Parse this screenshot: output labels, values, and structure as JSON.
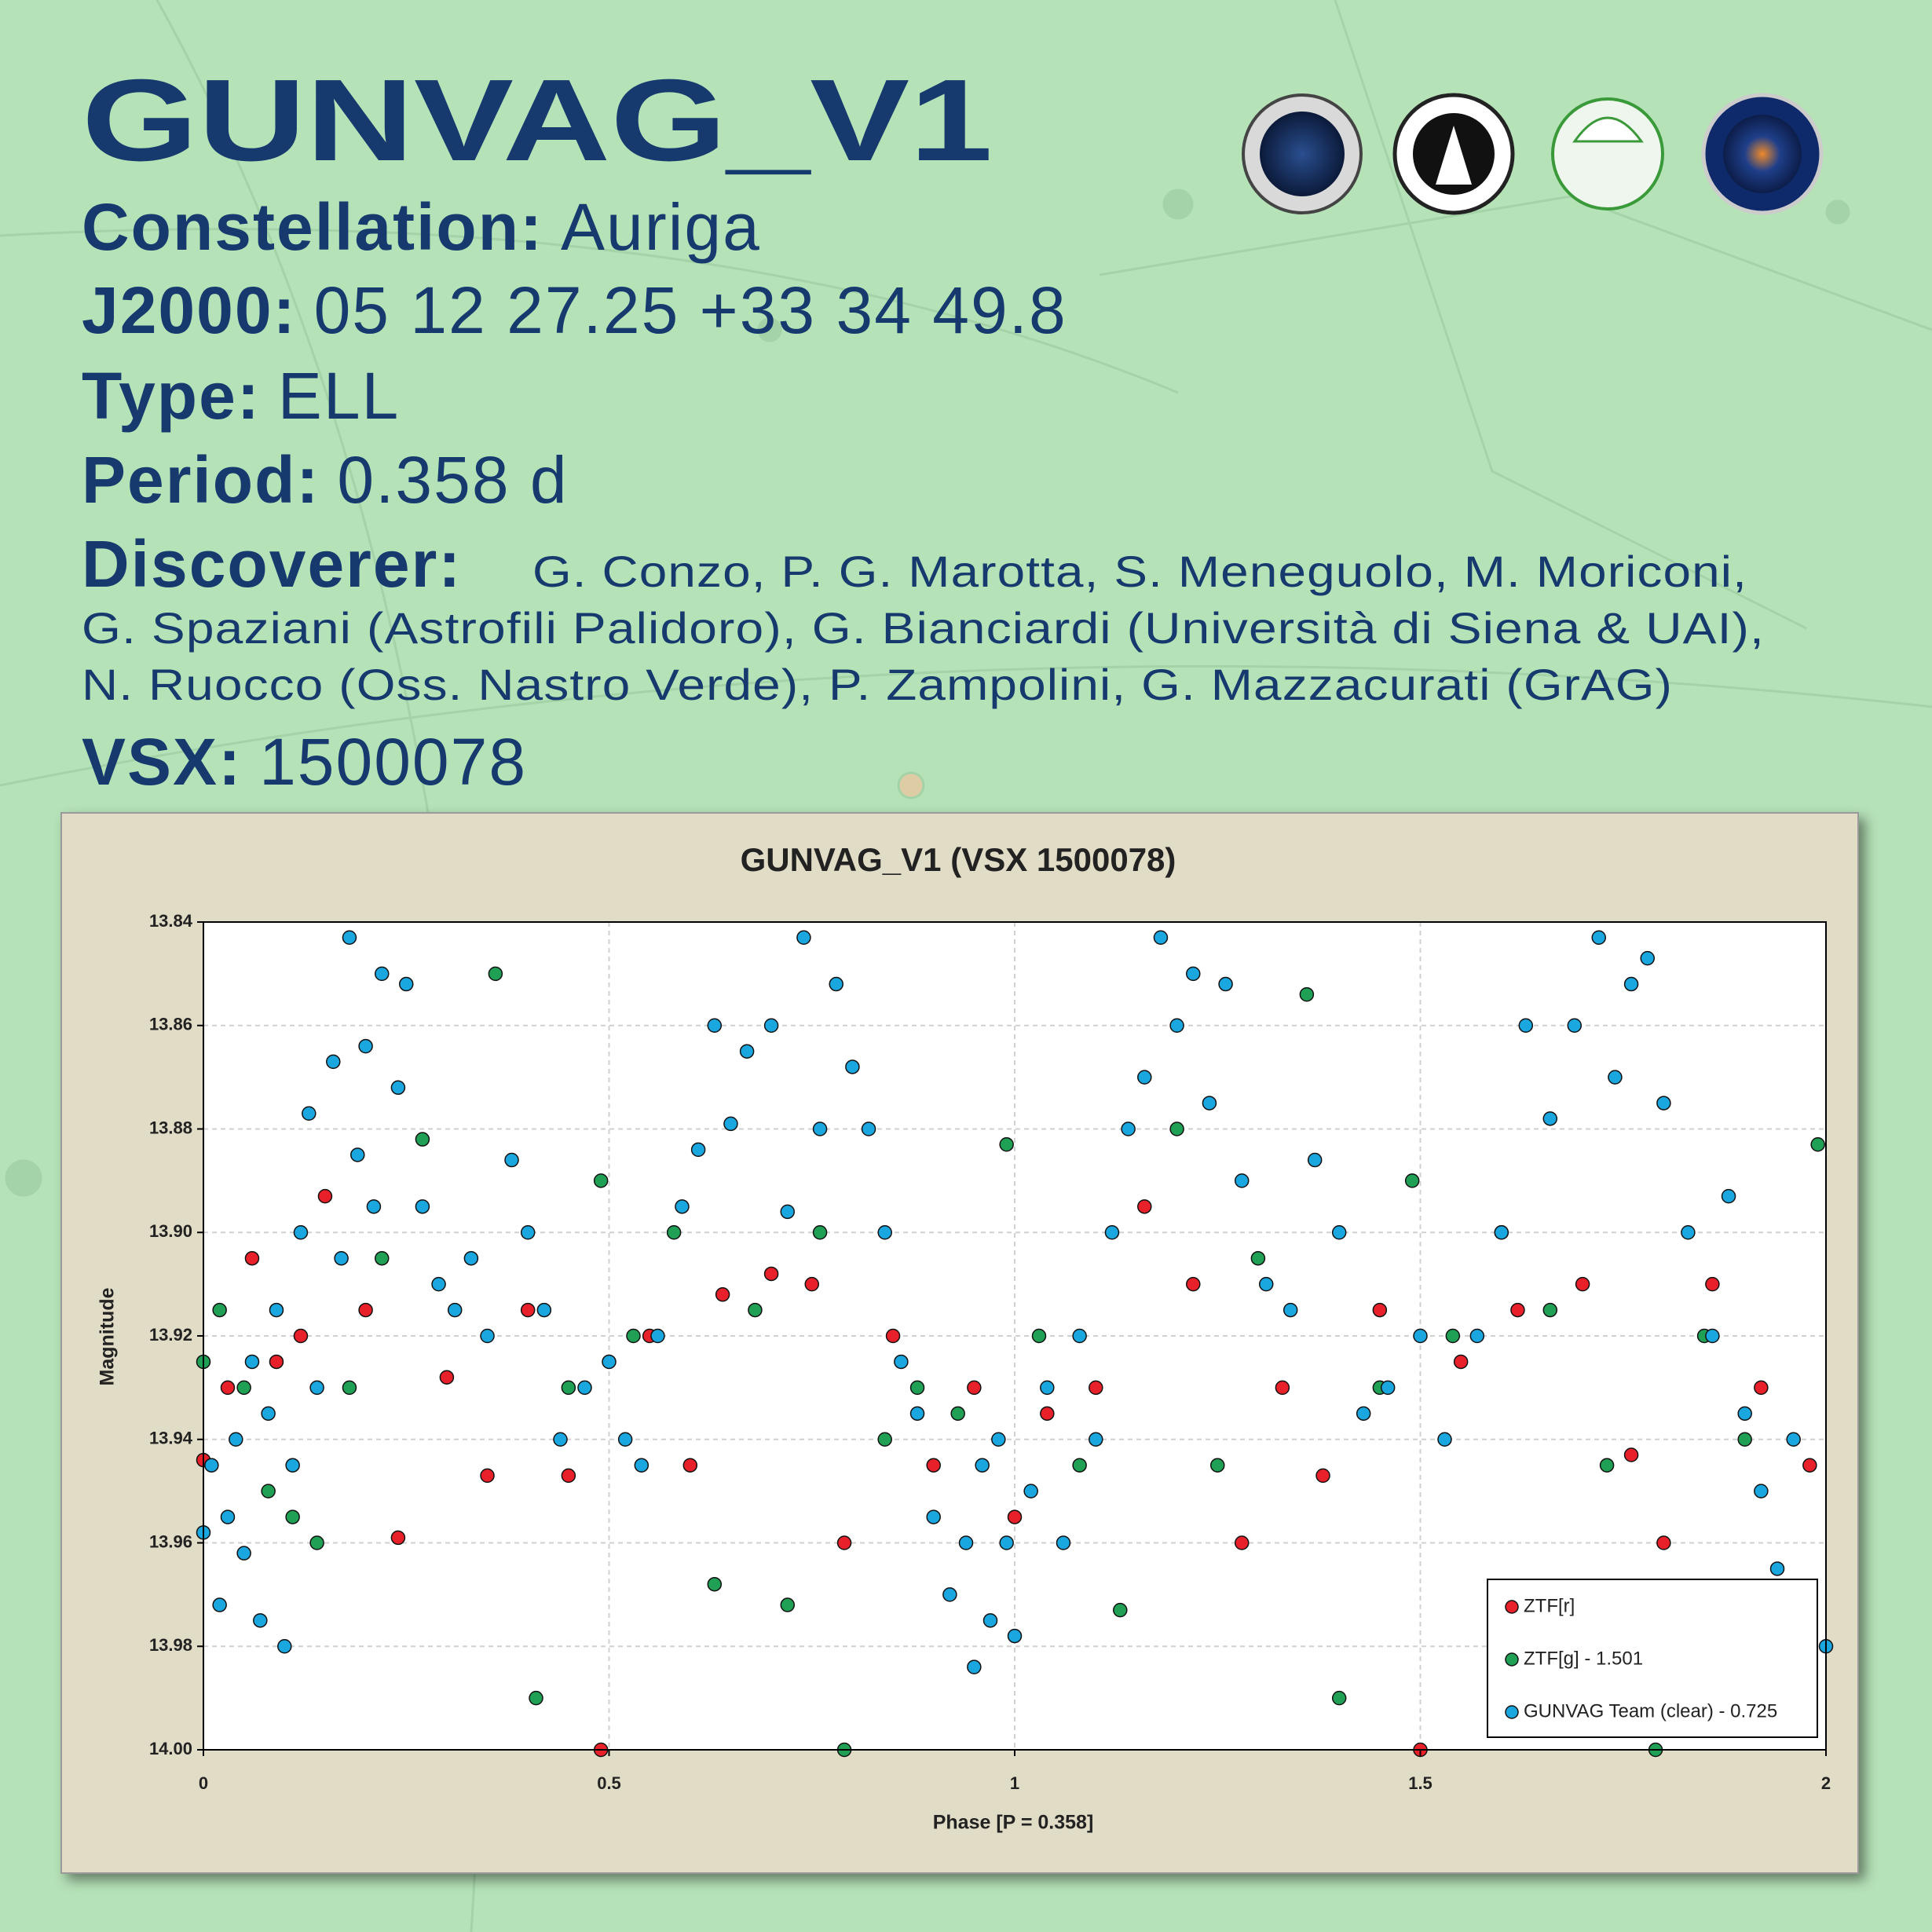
{
  "header": {
    "title": "GUNVAG_V1",
    "fields": [
      {
        "label": "Constellation:",
        "value": "Auriga"
      },
      {
        "label": "J2000:",
        "value": "05 12 27.25 +33 34 49.8"
      },
      {
        "label": "Type:",
        "value": "ELL"
      },
      {
        "label": "Period:",
        "value": "0.358 d"
      }
    ],
    "discoverer": {
      "label": "Discoverer:",
      "lines": [
        "G. Conzo, P. G. Marotta, S. Meneguolo, M. Moriconi,",
        "G. Spaziani (Astrofili Palidoro), G. Bianciardi (Università di Siena & UAI),",
        "N. Ruocco (Oss. Nastro Verde), P. Zampolini, G. Mazzacurati (GrAG)"
      ]
    },
    "vsx": {
      "label": "VSX:",
      "value": "1500078"
    }
  },
  "chart_data": {
    "type": "scatter",
    "title": "GUNVAG_V1 (VSX 1500078)",
    "x_label": "Phase [P = 0.358]",
    "y_label": "Magnitude",
    "xlim": [
      0,
      2
    ],
    "xticks": [
      0,
      0.5,
      1,
      1.5,
      2
    ],
    "ylim": [
      13.84,
      14.0
    ],
    "y_reversed": true,
    "yticks": [
      13.84,
      13.86,
      13.88,
      {
        "value": 13.9,
        "label": "13.90"
      },
      13.92,
      13.94,
      13.96,
      13.98,
      {
        "value": 14.0,
        "label": "14.00"
      }
    ],
    "grid": true,
    "legend": "lower right",
    "series": [
      {
        "name": "ZTF[r]",
        "color": "#e8202a",
        "x": [
          0.0,
          0.03,
          0.06,
          0.09,
          0.12,
          0.15,
          0.2,
          0.24,
          0.3,
          0.35,
          0.4,
          0.45,
          0.49,
          0.55,
          0.6,
          0.64,
          0.7,
          0.75,
          0.79,
          0.85,
          0.9,
          0.95,
          1.0,
          1.04,
          1.1,
          1.16,
          1.22,
          1.28,
          1.33,
          1.38,
          1.45,
          1.5,
          1.55,
          1.62,
          1.7,
          1.76,
          1.8,
          1.86,
          1.92,
          1.98
        ],
        "values": [
          13.944,
          13.93,
          13.905,
          13.925,
          13.92,
          13.893,
          13.915,
          13.959,
          13.928,
          13.947,
          13.915,
          13.947,
          14.0,
          13.92,
          13.945,
          13.912,
          13.908,
          13.91,
          13.96,
          13.92,
          13.945,
          13.93,
          13.955,
          13.935,
          13.93,
          13.895,
          13.91,
          13.96,
          13.93,
          13.947,
          13.915,
          14.0,
          13.925,
          13.915,
          13.91,
          13.943,
          13.96,
          13.91,
          13.93,
          13.945
        ]
      },
      {
        "name": "ZTF[g] - 1.501",
        "color": "#1fa055",
        "x": [
          0.0,
          0.02,
          0.05,
          0.08,
          0.11,
          0.14,
          0.18,
          0.22,
          0.27,
          0.36,
          0.41,
          0.45,
          0.49,
          0.53,
          0.58,
          0.63,
          0.68,
          0.72,
          0.76,
          0.79,
          0.84,
          0.88,
          0.93,
          0.99,
          1.03,
          1.08,
          1.13,
          1.2,
          1.25,
          1.3,
          1.36,
          1.4,
          1.45,
          1.49,
          1.54,
          1.6,
          1.66,
          1.73,
          1.79,
          1.85,
          1.9,
          1.99
        ],
        "values": [
          13.925,
          13.915,
          13.93,
          13.95,
          13.955,
          13.96,
          13.93,
          13.905,
          13.882,
          13.85,
          13.99,
          13.93,
          13.89,
          13.92,
          13.9,
          13.968,
          13.915,
          13.972,
          13.9,
          14.0,
          13.94,
          13.93,
          13.935,
          13.883,
          13.92,
          13.945,
          13.973,
          13.88,
          13.945,
          13.905,
          13.854,
          13.99,
          13.93,
          13.89,
          13.92,
          13.9,
          13.915,
          13.945,
          14.0,
          13.92,
          13.94,
          13.883
        ]
      },
      {
        "name": "GUNVAG Team (clear) - 0.725",
        "color": "#1aa7e0",
        "x": [
          0.0,
          0.01,
          0.02,
          0.03,
          0.04,
          0.05,
          0.06,
          0.07,
          0.08,
          0.09,
          0.1,
          0.11,
          0.12,
          0.13,
          0.14,
          0.16,
          0.17,
          0.18,
          0.19,
          0.2,
          0.21,
          0.22,
          0.24,
          0.25,
          0.27,
          0.29,
          0.31,
          0.33,
          0.35,
          0.38,
          0.4,
          0.42,
          0.44,
          0.47,
          0.5,
          0.52,
          0.54,
          0.56,
          0.59,
          0.61,
          0.63,
          0.65,
          0.67,
          0.7,
          0.72,
          0.74,
          0.76,
          0.78,
          0.8,
          0.82,
          0.84,
          0.86,
          0.88,
          0.9,
          0.92,
          0.94,
          0.95,
          0.96,
          0.97,
          0.98,
          0.99,
          1.0,
          1.02,
          1.04,
          1.06,
          1.08,
          1.1,
          1.12,
          1.14,
          1.16,
          1.18,
          1.2,
          1.22,
          1.24,
          1.26,
          1.28,
          1.31,
          1.34,
          1.37,
          1.4,
          1.43,
          1.46,
          1.5,
          1.53,
          1.57,
          1.6,
          1.63,
          1.66,
          1.69,
          1.72,
          1.74,
          1.76,
          1.78,
          1.8,
          1.83,
          1.86,
          1.88,
          1.9,
          1.92,
          1.94,
          1.96,
          1.98,
          2.0
        ],
        "values": [
          13.958,
          13.945,
          13.972,
          13.955,
          13.94,
          13.962,
          13.925,
          13.975,
          13.935,
          13.915,
          13.98,
          13.945,
          13.9,
          13.877,
          13.93,
          13.867,
          13.905,
          13.843,
          13.885,
          13.864,
          13.895,
          13.85,
          13.872,
          13.852,
          13.895,
          13.91,
          13.915,
          13.905,
          13.92,
          13.886,
          13.9,
          13.915,
          13.94,
          13.93,
          13.925,
          13.94,
          13.945,
          13.92,
          13.895,
          13.884,
          13.86,
          13.879,
          13.865,
          13.86,
          13.896,
          13.843,
          13.88,
          13.852,
          13.868,
          13.88,
          13.9,
          13.925,
          13.935,
          13.955,
          13.97,
          13.96,
          13.984,
          13.945,
          13.975,
          13.94,
          13.96,
          13.978,
          13.95,
          13.93,
          13.96,
          13.92,
          13.94,
          13.9,
          13.88,
          13.87,
          13.843,
          13.86,
          13.85,
          13.875,
          13.852,
          13.89,
          13.91,
          13.915,
          13.886,
          13.9,
          13.935,
          13.93,
          13.92,
          13.94,
          13.92,
          13.9,
          13.86,
          13.878,
          13.86,
          13.843,
          13.87,
          13.852,
          13.847,
          13.875,
          13.9,
          13.92,
          13.893,
          13.935,
          13.95,
          13.965,
          13.94,
          13.97,
          13.98
        ]
      }
    ]
  }
}
